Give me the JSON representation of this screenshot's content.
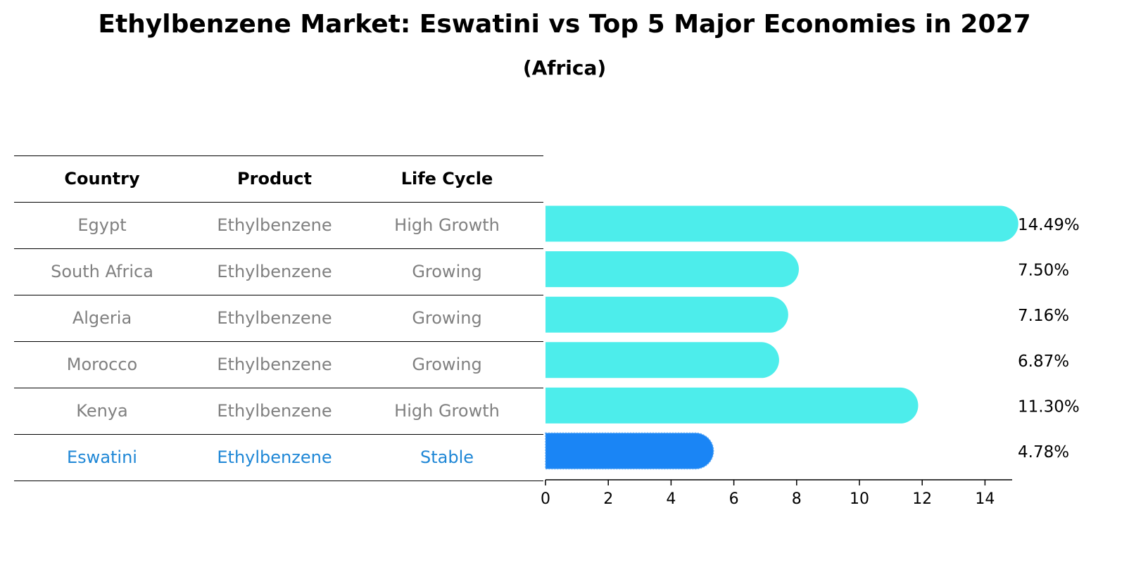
{
  "title": "Ethylbenzene Market: Eswatini vs Top 5 Major Economies in 2027",
  "subtitle": "(Africa)",
  "table": {
    "headers": [
      "Country",
      "Product",
      "Life Cycle"
    ],
    "rows": [
      {
        "country": "Egypt",
        "product": "Ethylbenzene",
        "life_cycle": "High Growth",
        "highlight": false
      },
      {
        "country": "South Africa",
        "product": "Ethylbenzene",
        "life_cycle": "Growing",
        "highlight": false
      },
      {
        "country": "Algeria",
        "product": "Ethylbenzene",
        "life_cycle": "Growing",
        "highlight": false
      },
      {
        "country": "Morocco",
        "product": "Ethylbenzene",
        "life_cycle": "Growing",
        "highlight": false
      },
      {
        "country": "Kenya",
        "product": "Ethylbenzene",
        "life_cycle": "High Growth",
        "highlight": false
      },
      {
        "country": "Eswatini",
        "product": "Ethylbenzene",
        "life_cycle": "Stable",
        "highlight": true
      }
    ]
  },
  "colors": {
    "bar": "#4dedeb",
    "highlight_bar": "#1a85f5",
    "highlight_text": "#1f87d6",
    "muted_text": "#808080"
  },
  "chart_data": {
    "type": "bar",
    "orientation": "horizontal",
    "categories": [
      "Egypt",
      "South Africa",
      "Algeria",
      "Morocco",
      "Kenya",
      "Eswatini"
    ],
    "values": [
      14.49,
      7.5,
      7.16,
      6.87,
      11.3,
      4.78
    ],
    "value_labels": [
      "14.49%",
      "7.50%",
      "7.16%",
      "6.87%",
      "11.30%",
      "4.78%"
    ],
    "highlight_category": "Eswatini",
    "xlim": [
      0,
      15.2
    ],
    "xticks": [
      0,
      2,
      4,
      6,
      8,
      10,
      12,
      14
    ],
    "xtick_labels": [
      "0",
      "2",
      "4",
      "6",
      "8",
      "10",
      "12",
      "14"
    ],
    "xlabel": "",
    "ylabel": "",
    "grid": false,
    "legend": false
  }
}
